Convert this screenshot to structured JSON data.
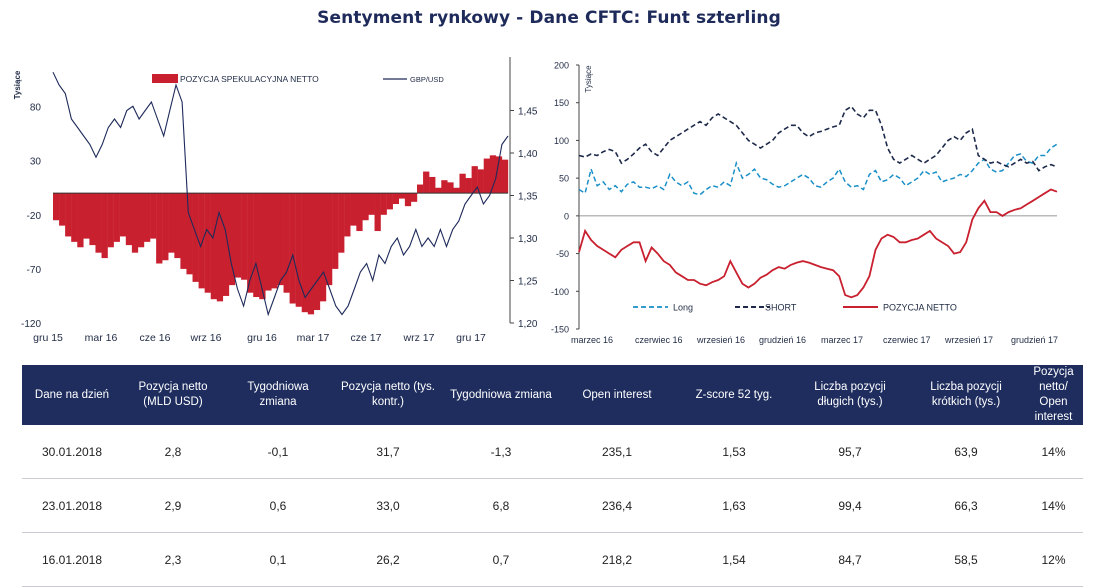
{
  "title": "Sentyment rynkowy - Dane CFTC:  Funt szterling",
  "colors": {
    "navy": "#1e2d5e",
    "red": "#c9202f",
    "blue": "#1a8fc8",
    "dark": "#1e2a4a"
  },
  "chart_data": [
    {
      "type": "bar",
      "y_left_label": "Tysiące",
      "y_left_ticks": [
        "80",
        "30",
        "-20",
        "-70",
        "-120"
      ],
      "y_right_ticks": [
        "1,45",
        "1,40",
        "1,35",
        "1,30",
        "1,25",
        "1,20"
      ],
      "x_ticks": [
        "gru 15",
        "mar 16",
        "cze 16",
        "wrz 16",
        "gru 16",
        "mar 17",
        "cze 17",
        "wrz 17",
        "gru 17"
      ],
      "ylim_left": [
        -120,
        100
      ],
      "ylim_right": [
        1.2,
        1.48
      ],
      "legend": [
        "POZYCJA SPEKULACYJNA NETTO",
        "GBP/USD"
      ],
      "series": [
        {
          "name": "POZYCJA SPEKULACYJNA NETTO",
          "values": [
            -25,
            -30,
            -40,
            -45,
            -50,
            -42,
            -48,
            -55,
            -60,
            -50,
            -45,
            -40,
            -48,
            -55,
            -50,
            -45,
            -42,
            -65,
            -62,
            -55,
            -60,
            -70,
            -75,
            -82,
            -88,
            -92,
            -98,
            -100,
            -95,
            -85,
            -78,
            -80,
            -92,
            -96,
            -98,
            -90,
            -88,
            -85,
            -92,
            -102,
            -105,
            -110,
            -112,
            -108,
            -100,
            -85,
            -70,
            -55,
            -40,
            -30,
            -35,
            -25,
            -20,
            -35,
            -20,
            -15,
            -10,
            -5,
            -12,
            -8,
            8,
            20,
            15,
            5,
            12,
            10,
            5,
            18,
            14,
            25,
            22,
            32,
            35,
            34,
            31
          ]
        },
        {
          "name": "GBP/USD",
          "values": [
            1.495,
            1.48,
            1.47,
            1.44,
            1.43,
            1.42,
            1.41,
            1.395,
            1.41,
            1.43,
            1.44,
            1.43,
            1.45,
            1.455,
            1.44,
            1.45,
            1.46,
            1.44,
            1.42,
            1.45,
            1.48,
            1.46,
            1.33,
            1.31,
            1.29,
            1.31,
            1.3,
            1.33,
            1.31,
            1.27,
            1.24,
            1.22,
            1.25,
            1.27,
            1.24,
            1.21,
            1.23,
            1.25,
            1.26,
            1.28,
            1.25,
            1.23,
            1.24,
            1.25,
            1.26,
            1.24,
            1.22,
            1.21,
            1.22,
            1.24,
            1.26,
            1.27,
            1.25,
            1.28,
            1.27,
            1.29,
            1.3,
            1.28,
            1.29,
            1.31,
            1.29,
            1.3,
            1.29,
            1.31,
            1.29,
            1.31,
            1.32,
            1.34,
            1.35,
            1.36,
            1.34,
            1.35,
            1.37,
            1.41,
            1.42
          ]
        }
      ]
    },
    {
      "type": "line",
      "ylabel": "Tysiące",
      "y_ticks": [
        "200",
        "150",
        "100",
        "50",
        "0",
        "-50",
        "-100",
        "-150"
      ],
      "ylim": [
        -150,
        200
      ],
      "x_ticks": [
        "marzec 16",
        "czerwiec 16",
        "wrzesień 16",
        "grudzień 16",
        "marzec 17",
        "czerwiec 17",
        "wrzesień 17",
        "grudzień 17"
      ],
      "legend": [
        "Long",
        "SHORT",
        "POZYCJA NETTO"
      ],
      "series": [
        {
          "name": "Long",
          "values": [
            35,
            30,
            62,
            40,
            45,
            35,
            40,
            32,
            42,
            45,
            38,
            38,
            36,
            40,
            35,
            55,
            45,
            40,
            45,
            30,
            28,
            35,
            40,
            38,
            45,
            40,
            70,
            50,
            55,
            62,
            50,
            48,
            42,
            38,
            40,
            45,
            50,
            55,
            50,
            40,
            38,
            45,
            50,
            62,
            45,
            38,
            40,
            35,
            55,
            60,
            45,
            48,
            55,
            50,
            40,
            45,
            50,
            60,
            55,
            58,
            45,
            48,
            50,
            55,
            52,
            60,
            70,
            75,
            62,
            58,
            60,
            70,
            80,
            82,
            72,
            70,
            80,
            80,
            90,
            95
          ]
        },
        {
          "name": "SHORT",
          "values": [
            80,
            78,
            82,
            80,
            85,
            88,
            85,
            70,
            75,
            82,
            90,
            95,
            85,
            80,
            90,
            100,
            105,
            110,
            115,
            120,
            125,
            120,
            130,
            135,
            130,
            125,
            120,
            110,
            100,
            95,
            90,
            95,
            100,
            110,
            115,
            120,
            120,
            110,
            105,
            110,
            112,
            115,
            118,
            120,
            140,
            145,
            135,
            130,
            140,
            140,
            120,
            90,
            75,
            70,
            75,
            80,
            75,
            70,
            75,
            80,
            90,
            100,
            105,
            100,
            110,
            115,
            80,
            75,
            70,
            72,
            68,
            65,
            70,
            75,
            70,
            72,
            60,
            65,
            68,
            65
          ]
        },
        {
          "name": "POZYCJA NETTO",
          "values": [
            -48,
            -20,
            -32,
            -40,
            -45,
            -50,
            -55,
            -45,
            -40,
            -35,
            -35,
            -60,
            -42,
            -50,
            -60,
            -65,
            -75,
            -80,
            -85,
            -85,
            -90,
            -92,
            -88,
            -85,
            -80,
            -60,
            -75,
            -90,
            -95,
            -90,
            -82,
            -78,
            -72,
            -68,
            -70,
            -65,
            -62,
            -60,
            -62,
            -65,
            -68,
            -70,
            -72,
            -80,
            -105,
            -108,
            -105,
            -95,
            -80,
            -45,
            -30,
            -25,
            -28,
            -35,
            -35,
            -32,
            -30,
            -25,
            -20,
            -30,
            -35,
            -40,
            -50,
            -48,
            -35,
            -5,
            10,
            20,
            5,
            5,
            0,
            5,
            8,
            10,
            15,
            20,
            25,
            30,
            35,
            32
          ]
        }
      ]
    }
  ],
  "table": {
    "headers": [
      "Dane na dzień",
      "Pozycja netto (MLD USD)",
      "Tygodniowa zmiana",
      "Pozycja netto (tys. kontr.)",
      "Tygodniowa zmiana",
      "Open interest",
      "Z-score 52 tyg.",
      "Liczba pozycji długich (tys.)",
      "Liczba pozycji krótkich (tys.)",
      "Pozycja netto/ Open interest"
    ],
    "rows": [
      [
        "30.01.2018",
        "2,8",
        "-0,1",
        "31,7",
        "-1,3",
        "235,1",
        "1,53",
        "95,7",
        "63,9",
        "14%"
      ],
      [
        "23.01.2018",
        "2,9",
        "0,6",
        "33,0",
        "6,8",
        "236,4",
        "1,63",
        "99,4",
        "66,3",
        "14%"
      ],
      [
        "16.01.2018",
        "2,3",
        "0,1",
        "26,2",
        "0,7",
        "218,2",
        "1,54",
        "84,7",
        "58,5",
        "12%"
      ]
    ]
  }
}
